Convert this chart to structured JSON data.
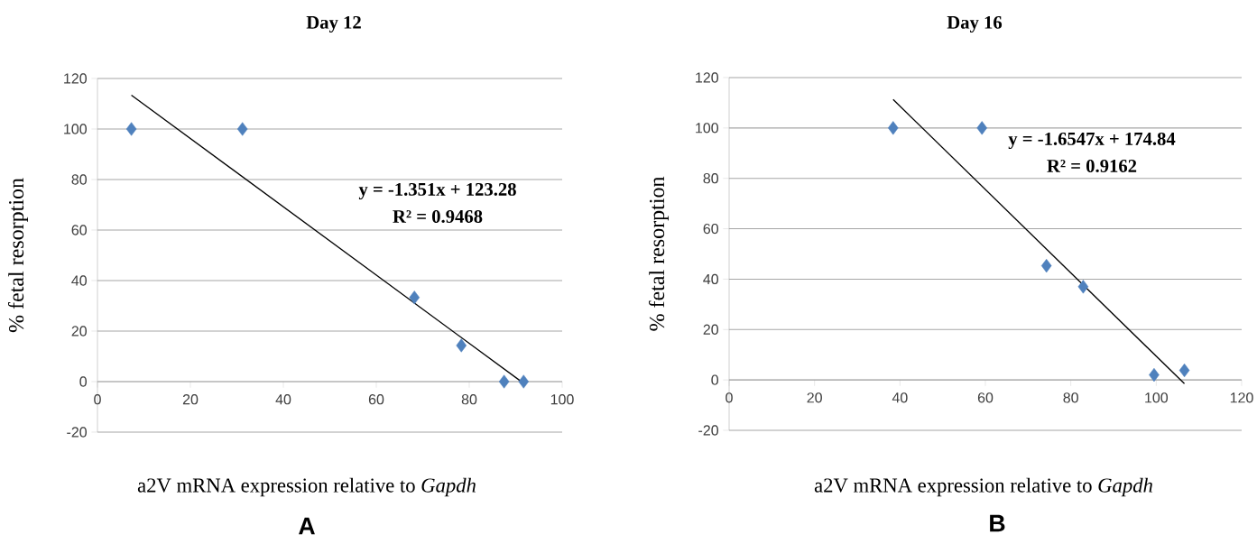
{
  "chart_data": [
    {
      "type": "scatter",
      "title": "Day 12",
      "xlabel": "a2V mRNA expression relative to *Gapdh*",
      "ylabel": "% fetal resorption",
      "xlim": [
        0,
        100
      ],
      "ylim": [
        -20,
        120
      ],
      "xticks": [
        0,
        20,
        40,
        60,
        80,
        100
      ],
      "yticks": [
        -20,
        0,
        20,
        40,
        60,
        80,
        100,
        120
      ],
      "grid": "y",
      "marker": "diamond",
      "series": [
        {
          "color": "#4f81bd",
          "x": [
            7.3,
            31.2,
            68.2,
            78.3,
            87.5,
            91.7
          ],
          "values": [
            100,
            100,
            33.3,
            14.3,
            0,
            0
          ]
        },
        {
          "type": "line",
          "color": "#000000",
          "marker": "none",
          "x": [
            7.3,
            92.1
          ],
          "values": [
            113.4,
            -1.2
          ]
        }
      ],
      "annotations": [
        "y = -1.351x + 123.28",
        "R² = 0.9468",
        "A"
      ]
    },
    {
      "type": "scatter",
      "title": "Day 16",
      "xlabel": "a2V mRNA expression relative to *Gapdh*",
      "ylabel": "% fetal resorption",
      "xlim": [
        0,
        120
      ],
      "ylim": [
        -20,
        120
      ],
      "xticks": [
        0,
        20,
        40,
        60,
        80,
        100,
        120
      ],
      "yticks": [
        -20,
        0,
        20,
        40,
        60,
        80,
        100,
        120
      ],
      "grid": "y",
      "marker": "diamond",
      "series": [
        {
          "color": "#4f81bd",
          "x": [
            38.4,
            59.2,
            74.3,
            82.9,
            99.5,
            106.6
          ],
          "values": [
            100,
            100,
            45.3,
            37,
            2,
            3.8
          ]
        },
        {
          "type": "line",
          "color": "#000000",
          "marker": "none",
          "x": [
            38.4,
            106.6
          ],
          "values": [
            111.3,
            -1.5
          ]
        }
      ],
      "annotations": [
        "y = -1.6547x + 174.84",
        "R² = 0.9162",
        "B"
      ]
    }
  ]
}
